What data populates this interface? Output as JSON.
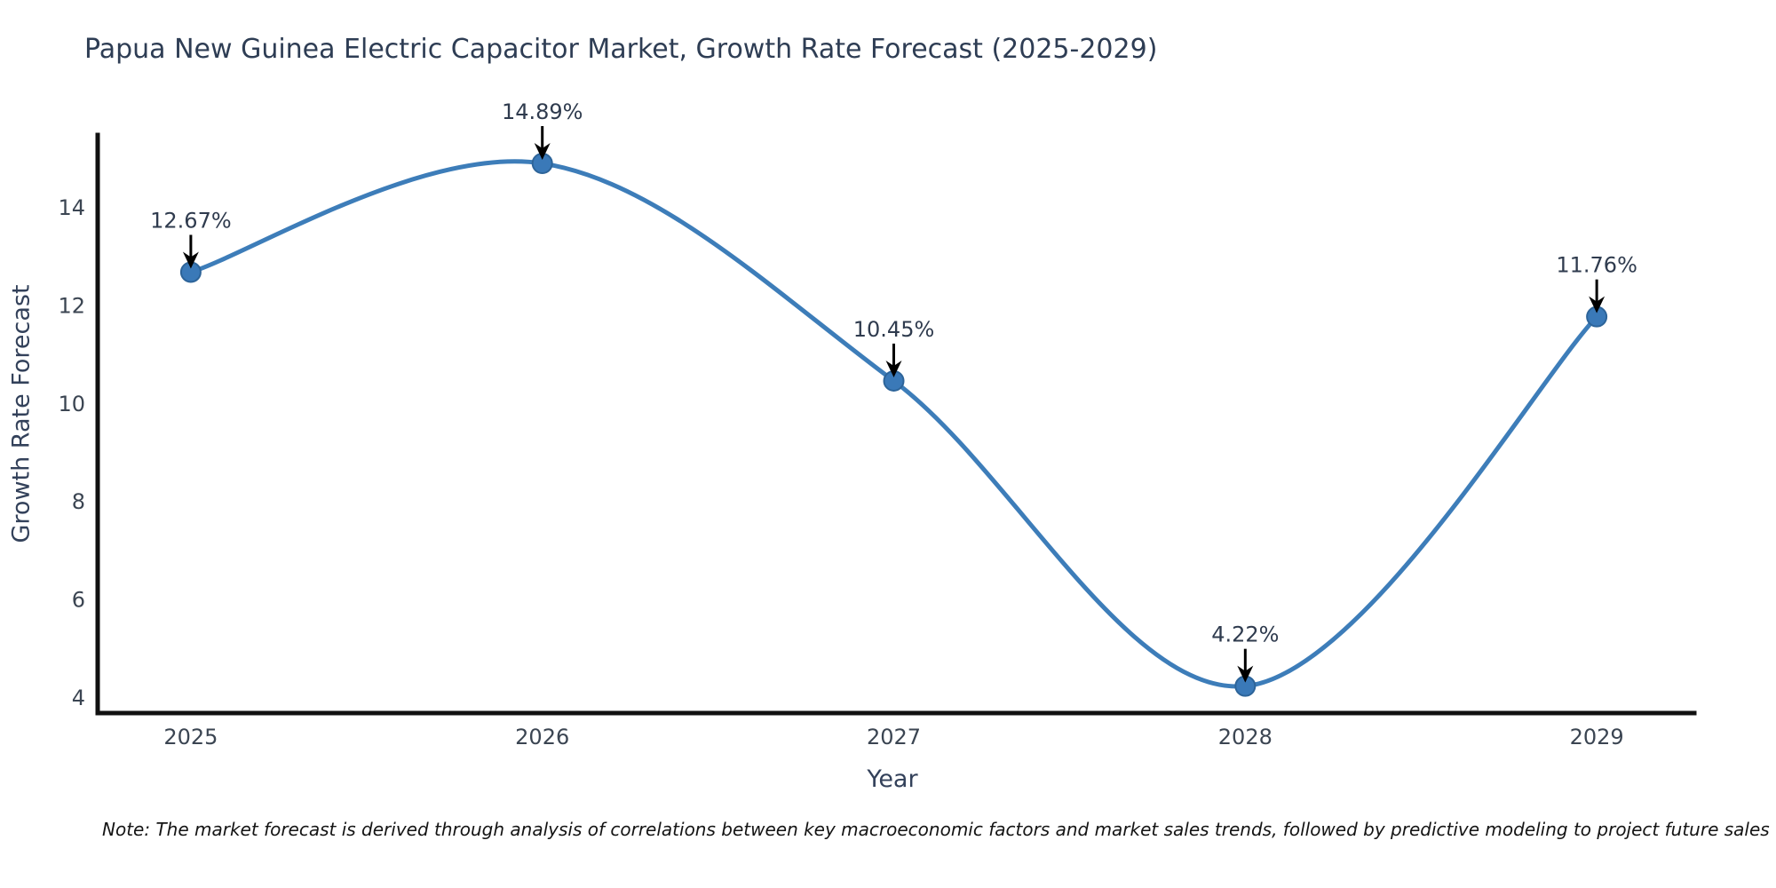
{
  "title": "Papua New Guinea Electric Capacitor Market, Growth Rate Forecast (2025-2029)",
  "footnote": "Note: The market forecast is derived through analysis of correlations between key macroeconomic factors and market sales trends, followed by predictive modeling to project future sales",
  "chart_data": {
    "type": "line",
    "line_shape": "spline",
    "title": "Papua New Guinea Electric Capacitor Market, Growth Rate Forecast (2025-2029)",
    "xlabel": "Year",
    "ylabel": "Growth Rate Forecast",
    "x": [
      2025,
      2026,
      2027,
      2028,
      2029
    ],
    "values": [
      12.67,
      14.89,
      10.45,
      4.22,
      11.76
    ],
    "point_labels": [
      "12.67%",
      "14.89%",
      "10.45%",
      "4.22%",
      "11.76%"
    ],
    "xticks": [
      2025,
      2026,
      2027,
      2028,
      2029
    ],
    "yticks": [
      4,
      6,
      8,
      10,
      12,
      14
    ],
    "xlim": [
      2024.735,
      2029.27
    ],
    "ylim": [
      3.67,
      15.47
    ],
    "grid": false,
    "legend": "none",
    "annotations_arrow": "down-to-point",
    "colors": {
      "line": "#3d7db9",
      "marker_fill": "#3a79b8",
      "marker_edge": "#2d6499",
      "axis": "#111111",
      "title_text": "#2e3d54",
      "tick_text": "#3b4552",
      "annotation_text": "#2f3b4e",
      "arrow": "#000000",
      "background": "#ffffff"
    }
  }
}
